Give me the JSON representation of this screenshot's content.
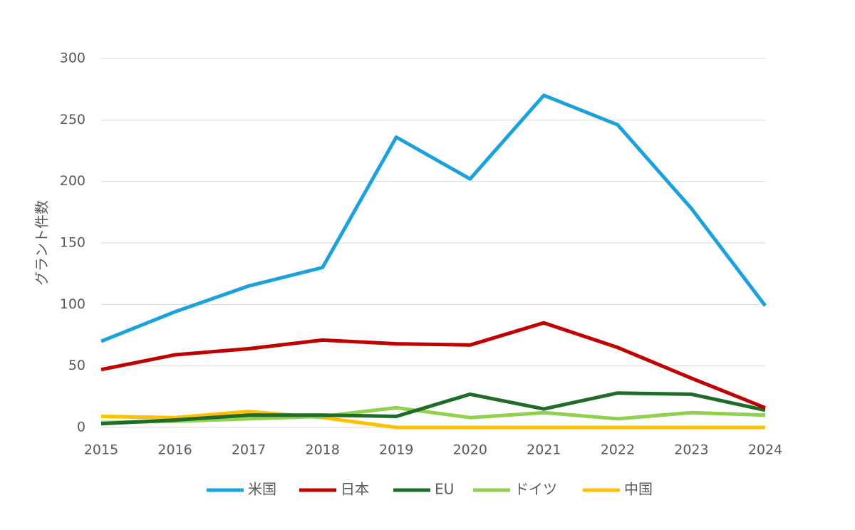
{
  "chart_data": {
    "type": "line",
    "title": "",
    "xlabel": "",
    "ylabel": "グラント件数",
    "ylim": [
      0,
      300
    ],
    "yticks": [
      0,
      50,
      100,
      150,
      200,
      250,
      300
    ],
    "grid": true,
    "legend_position": "bottom",
    "categories": [
      "2015",
      "2016",
      "2017",
      "2018",
      "2019",
      "2020",
      "2021",
      "2022",
      "2023",
      "2024"
    ],
    "series": [
      {
        "name": "米国",
        "color": "#1BA1DC",
        "values": [
          70,
          94,
          115,
          130,
          236,
          202,
          270,
          246,
          178,
          99
        ]
      },
      {
        "name": "日本",
        "color": "#C00000",
        "values": [
          47,
          59,
          64,
          71,
          68,
          67,
          85,
          65,
          40,
          16
        ]
      },
      {
        "name": "EU",
        "color": "#1E6B2A",
        "values": [
          3,
          6,
          10,
          10,
          9,
          27,
          15,
          28,
          27,
          14
        ]
      },
      {
        "name": "ドイツ",
        "color": "#92D050",
        "values": [
          4,
          5,
          7,
          9,
          16,
          8,
          12,
          7,
          12,
          10
        ]
      },
      {
        "name": "中国",
        "color": "#FFC000",
        "values": [
          9,
          8,
          13,
          8,
          0,
          0,
          0,
          0,
          0,
          0
        ]
      }
    ]
  }
}
